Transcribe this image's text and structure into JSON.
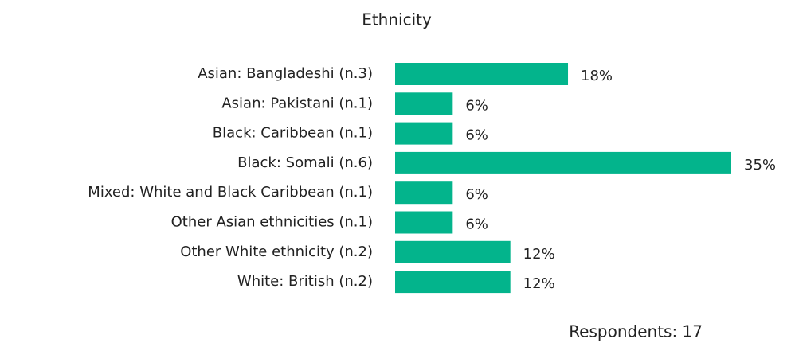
{
  "chart_data": {
    "type": "bar",
    "orientation": "horizontal",
    "title": "Ethnicity",
    "categories": [
      "Asian: Bangladeshi (n.3)",
      "Asian: Pakistani (n.1)",
      "Black: Caribbean (n.1)",
      "Black: Somali (n.6)",
      "Mixed: White and Black Caribbean (n.1)",
      "Other Asian ethnicities (n.1)",
      "Other White ethnicity (n.2)",
      "White: British (n.2)"
    ],
    "values": [
      18,
      6,
      6,
      35,
      6,
      6,
      12,
      12
    ],
    "value_labels": [
      "18%",
      "6%",
      "6%",
      "35%",
      "6%",
      "6%",
      "12%",
      "12%"
    ],
    "color": "#03b48c",
    "annotation": "Respondents: 17"
  }
}
